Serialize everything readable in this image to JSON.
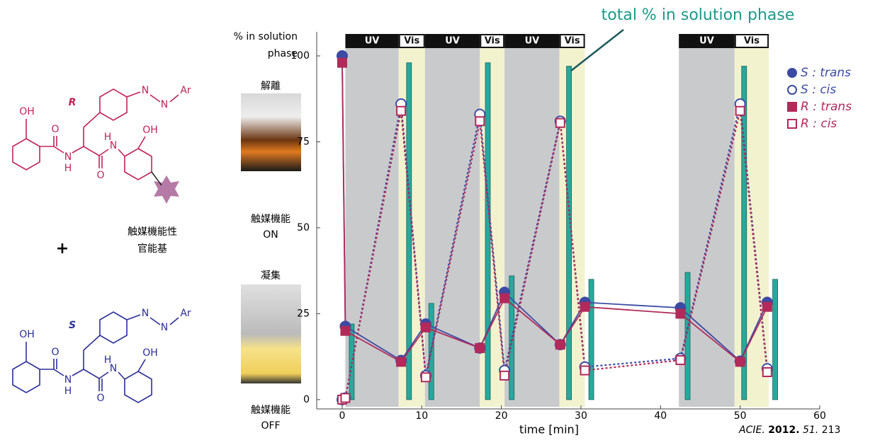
{
  "chart_data": {
    "type": "line",
    "ylabel_lines": [
      "% in solution",
      "phase"
    ],
    "xlabel": "time [min]",
    "xlim": [
      -3.2,
      60
    ],
    "ylim": [
      -2.7,
      107
    ],
    "xticks": [
      0,
      10,
      20,
      30,
      40,
      50,
      60
    ],
    "yticks": [
      0,
      25,
      50,
      75,
      100
    ],
    "phases": [
      {
        "label": "UV",
        "start": 0.4,
        "end": 7.1,
        "color": "#c9cacc"
      },
      {
        "label": "Vis",
        "start": 7.1,
        "end": 10.4,
        "color": "#f2f2cf"
      },
      {
        "label": "UV",
        "start": 10.4,
        "end": 17.3,
        "color": "#c9cacc"
      },
      {
        "label": "Vis",
        "start": 17.3,
        "end": 20.4,
        "color": "#f2f2cf"
      },
      {
        "label": "UV",
        "start": 20.4,
        "end": 27.3,
        "color": "#c9cacc"
      },
      {
        "label": "Vis",
        "start": 27.3,
        "end": 30.5,
        "color": "#f2f2cf"
      },
      {
        "label": "UV",
        "start": 42.3,
        "end": 49.3,
        "color": "#c9cacc"
      },
      {
        "label": "Vis",
        "start": 49.3,
        "end": 53.6,
        "color": "#f2f2cf"
      }
    ],
    "bars": {
      "name": "total % in solution phase",
      "color": "#2aa79b",
      "x": [
        1.2,
        8.4,
        11.2,
        18.3,
        21.3,
        28.5,
        31.3,
        43.4,
        50.5,
        54.4
      ],
      "values": [
        22,
        98,
        28,
        98,
        36,
        97,
        35,
        37,
        97,
        35
      ]
    },
    "x": [
      0,
      0.4,
      7.4,
      10.5,
      17.3,
      20.4,
      27.4,
      30.5,
      42.5,
      50,
      53.4
    ],
    "series": [
      {
        "name": "S : trans",
        "color": "#3b4ba3",
        "marker": "circle",
        "filled": true,
        "dash": false,
        "values": [
          100,
          21.3,
          11.4,
          22,
          15,
          31.2,
          16,
          28.3,
          26.7,
          11.2,
          28.3
        ]
      },
      {
        "name": "S : cis",
        "color": "#3b4ba3",
        "marker": "circle",
        "filled": false,
        "dash": true,
        "values": [
          0,
          0.5,
          86,
          7,
          83,
          8.5,
          81,
          9.5,
          12,
          86,
          9
        ]
      },
      {
        "name": "R : trans",
        "color": "#b12a5a",
        "marker": "square",
        "filled": true,
        "dash": false,
        "values": [
          98,
          20,
          11,
          21,
          15,
          29.5,
          16,
          27,
          25,
          11,
          27
        ]
      },
      {
        "name": "R : cis",
        "color": "#b12a5a",
        "marker": "square",
        "filled": false,
        "dash": true,
        "values": [
          0,
          0.5,
          84,
          6.5,
          81,
          7,
          80.5,
          8.5,
          11.5,
          84,
          8
        ]
      }
    ]
  },
  "molecules": [
    {
      "label": "R",
      "color": "#c0245a",
      "atoms": [
        "N",
        "N",
        "Ar",
        "OH",
        "O",
        "N",
        "H",
        "O",
        "N",
        "H",
        "OH"
      ]
    },
    {
      "label": "S",
      "color": "#2b2f96",
      "atoms": [
        "N",
        "N",
        "Ar",
        "OH",
        "O",
        "N",
        "H",
        "O",
        "N",
        "H",
        "OH"
      ]
    }
  ],
  "group_label": [
    "触媒機能性",
    "官能基"
  ],
  "plus": "+",
  "photos": [
    {
      "caption": "解離",
      "status": [
        "触媒機能",
        "ON"
      ]
    },
    {
      "caption": "凝集",
      "status": [
        "触媒機能",
        "OFF"
      ]
    }
  ],
  "citation": {
    "journal": "ACIE.",
    "year": "2012.",
    "volume": "51.",
    "page": "213"
  }
}
